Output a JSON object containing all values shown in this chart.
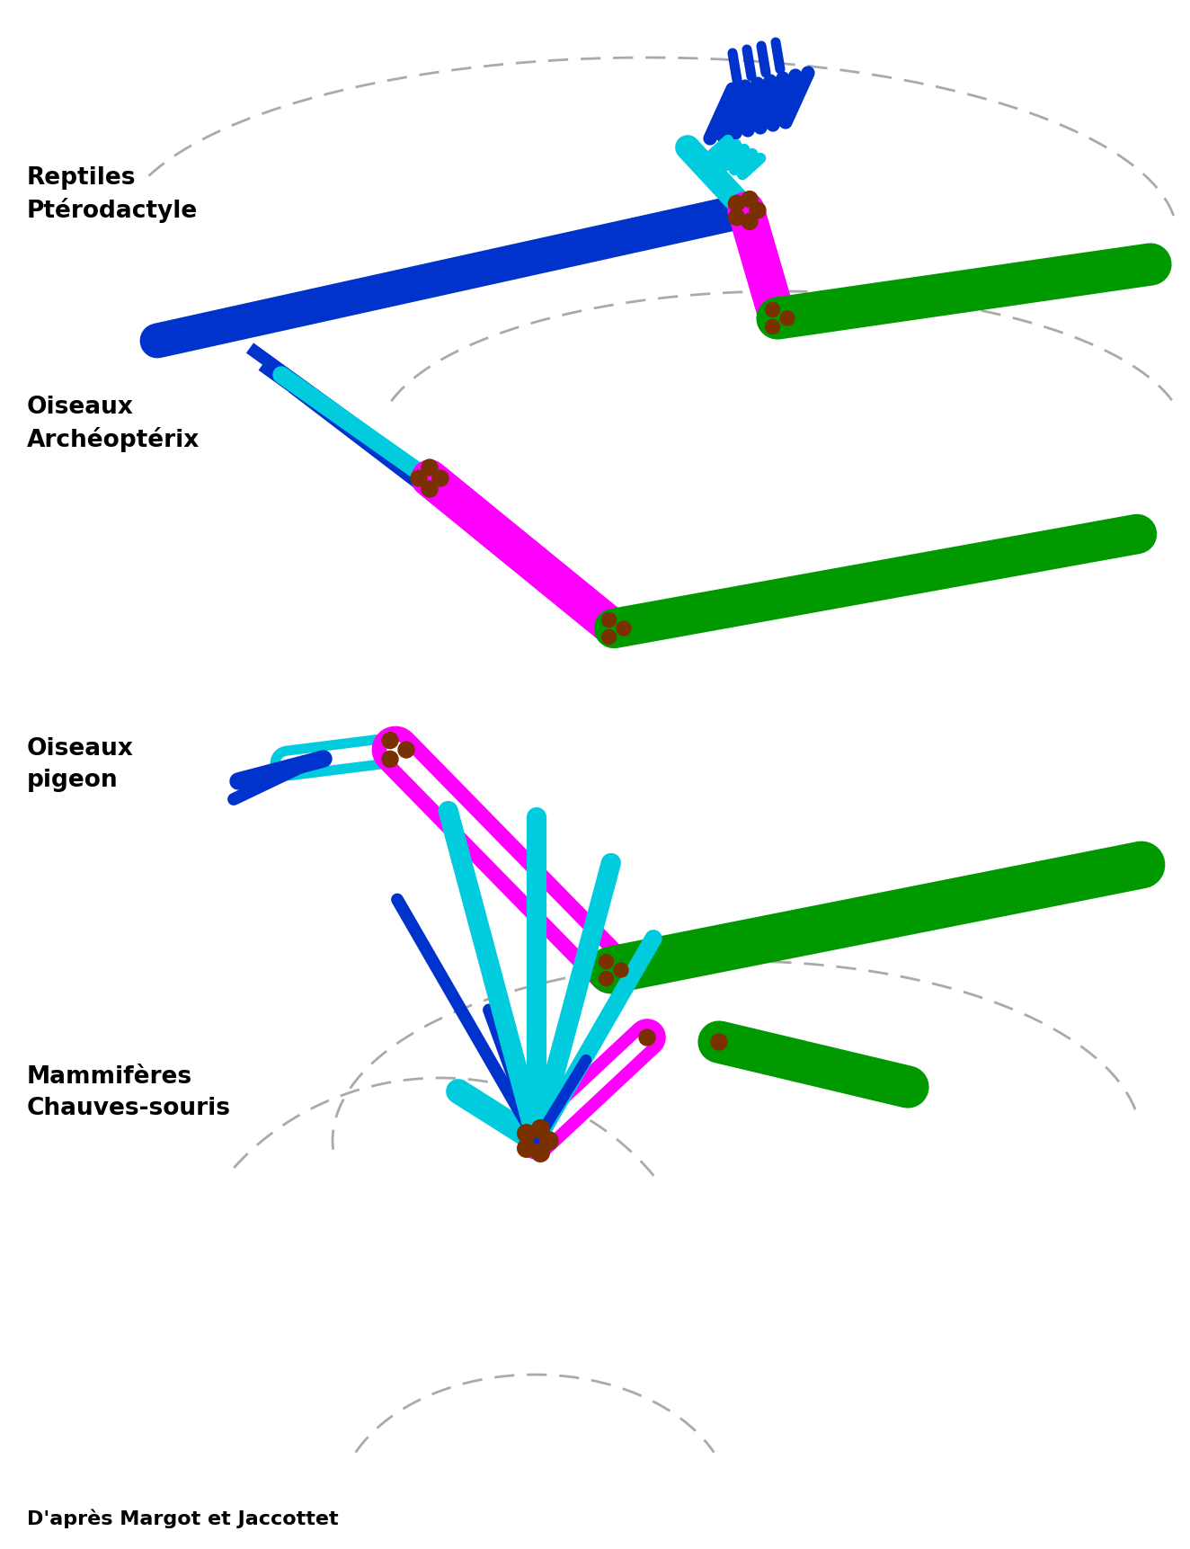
{
  "bg": "#ffffff",
  "colors": {
    "blue": "#0033CC",
    "cyan": "#00CCDD",
    "magenta": "#FF00FF",
    "green": "#009900",
    "brown": "#7B3000",
    "gray_dash": "#AAAAAA"
  },
  "labels": {
    "ptero_1": "Reptiles",
    "ptero_2": "Ptérodactyle",
    "archeo_1": "Oiseaux",
    "archeo_2": "Archéoptérix",
    "pigeon_1": "Oiseaux",
    "pigeon_2": "pigeon",
    "chauve_1": "Mammifères",
    "chauve_2": "Chauves-souris",
    "credit": "D'après Margot et Jaccottet"
  },
  "fontsize_label": 19,
  "fontsize_credit": 16
}
